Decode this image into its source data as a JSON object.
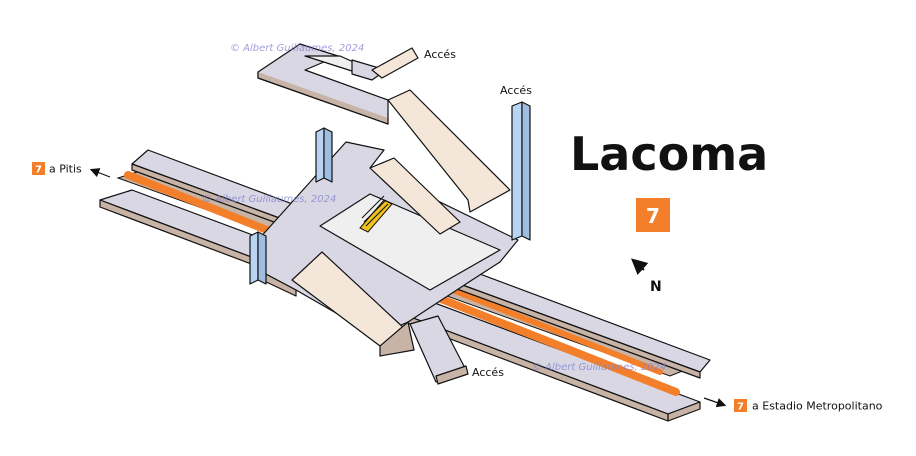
{
  "station": {
    "name": "Lacoma",
    "line": "7"
  },
  "colors": {
    "line_orange": "#f47f2a",
    "wall_dark": "#c8b4a6",
    "slab": "#d8d7e3",
    "corridor": "#f5e6da",
    "mezzanine": "#efefef",
    "elevator": "#b9d3f3",
    "stair": "#f1c21b"
  },
  "destinations": {
    "west": {
      "line": "7",
      "label": "a Pitis"
    },
    "east": {
      "line": "7",
      "label": "a Estadio Metropolitano"
    }
  },
  "accesses": [
    {
      "label": "Accés"
    },
    {
      "label": "Accés"
    },
    {
      "label": "Accés"
    }
  ],
  "compass": {
    "label": "N"
  },
  "watermarks": [
    "© Albert Guillaumes, 2024",
    "© Albert Guillaumes, 2024",
    "© Albert Guillaumes, 2024"
  ]
}
